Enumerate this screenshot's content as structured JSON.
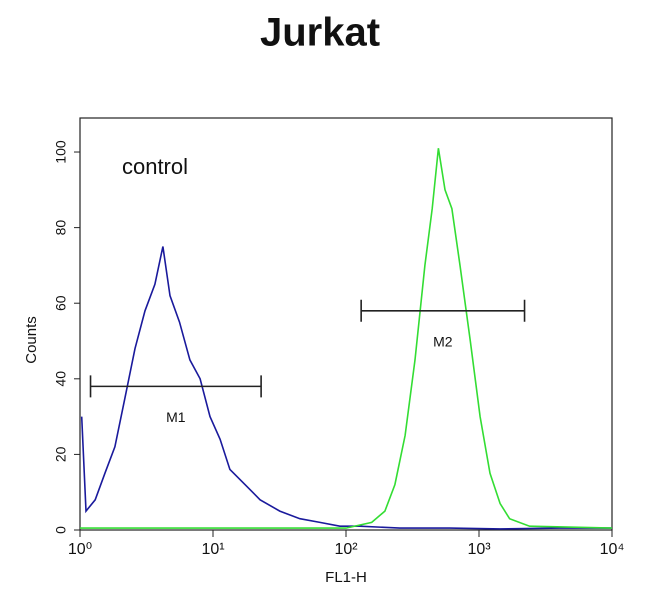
{
  "chart_data": {
    "type": "histogram-overlay",
    "title": "Jurkat",
    "annotation": "control",
    "x_label": "FL1-H",
    "y_label": "Counts",
    "xscale": "log",
    "xlim": [
      1,
      10000
    ],
    "ylim": [
      0,
      109
    ],
    "xticks": [
      {
        "value": 1,
        "label": "10⁰"
      },
      {
        "value": 10,
        "label": "10¹"
      },
      {
        "value": 100,
        "label": "10²"
      },
      {
        "value": 1000,
        "label": "10³"
      },
      {
        "value": 10000,
        "label": "10⁴"
      }
    ],
    "yticks": [
      0,
      20,
      40,
      60,
      80,
      100
    ],
    "series": [
      {
        "color": "#1a1a9c",
        "x": [
          1.03,
          1.11,
          1.3,
          1.54,
          1.83,
          2.18,
          2.59,
          3.08,
          3.66,
          4.2,
          4.75,
          5.6,
          6.7,
          8,
          9.5,
          11.3,
          13.4,
          17.4,
          22.6,
          31.8,
          45,
          63.6,
          90,
          127,
          254,
          600,
          1440,
          4000,
          10000
        ],
        "values": [
          30,
          5,
          8,
          15,
          22,
          35,
          48,
          58,
          65,
          75,
          62,
          55,
          45,
          40,
          30,
          24,
          16,
          12,
          8,
          5,
          3,
          2,
          1,
          1,
          0.5,
          0.5,
          0.3,
          0.5,
          0.5
        ]
      },
      {
        "color": "#33dd33",
        "x": [
          1,
          10,
          100,
          156,
          196,
          233,
          278,
          330,
          392,
          445,
          495,
          555,
          625,
          720,
          860,
          1020,
          1210,
          1440,
          1700,
          2400,
          10000
        ],
        "values": [
          0.5,
          0.5,
          0.5,
          2,
          5,
          12,
          25,
          45,
          70,
          85,
          101,
          90,
          85,
          70,
          50,
          30,
          15,
          7,
          3,
          1,
          0.5
        ]
      }
    ],
    "gates": [
      {
        "label": "M1",
        "x": [
          1.2,
          23
        ],
        "y": 38
      },
      {
        "label": "M2",
        "x": [
          130,
          2200
        ],
        "y": 58
      }
    ]
  }
}
